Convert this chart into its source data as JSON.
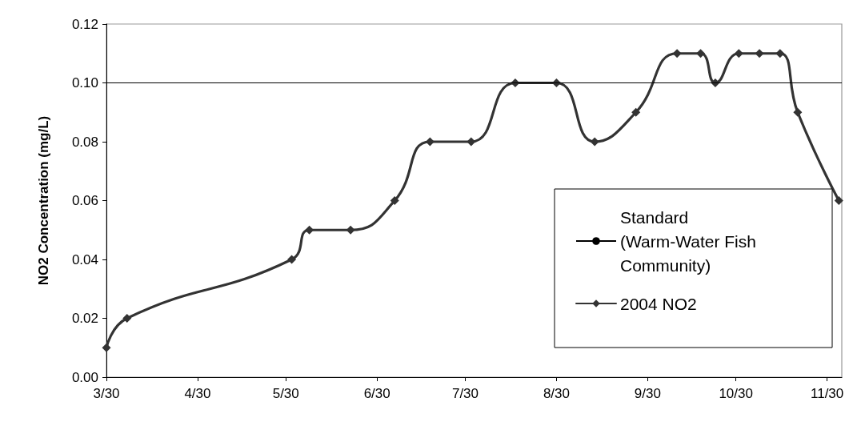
{
  "chart_data": {
    "type": "line",
    "ylabel": "NO2 Concentration (mg/L)",
    "x": [
      "--03-30",
      "--04-06",
      "--06-01",
      "--06-07",
      "--06-21",
      "--07-06",
      "--07-18",
      "--08-01",
      "--08-16",
      "--08-30",
      "--09-12",
      "--09-26",
      "--10-10",
      "--10-18",
      "--10-23",
      "--10-31",
      "--11-07",
      "--11-14",
      "--11-20",
      "--12-04"
    ],
    "series": [
      {
        "name": "2004 NO2",
        "color": "#333333",
        "values": [
          0.01,
          0.02,
          0.04,
          0.05,
          0.05,
          0.06,
          0.08,
          0.08,
          0.1,
          0.1,
          0.08,
          0.09,
          0.11,
          0.11,
          0.1,
          0.11,
          0.11,
          0.11,
          0.09,
          0.06
        ]
      }
    ],
    "xlim": [
      "--03-30",
      "--12-05"
    ],
    "xticks": [
      {
        "value": "--03-30",
        "label": "3/30"
      },
      {
        "value": "--04-30",
        "label": "4/30"
      },
      {
        "value": "--05-30",
        "label": "5/30"
      },
      {
        "value": "--06-30",
        "label": "6/30"
      },
      {
        "value": "--07-30",
        "label": "7/30"
      },
      {
        "value": "--08-30",
        "label": "8/30"
      },
      {
        "value": "--09-30",
        "label": "9/30"
      },
      {
        "value": "--10-30",
        "label": "10/30"
      },
      {
        "value": "--11-30",
        "label": "11/30"
      }
    ],
    "ylim": [
      0,
      0.12
    ],
    "yticks": [
      {
        "value": 0,
        "label": "0.00"
      },
      {
        "value": 0.02,
        "label": "0.02"
      },
      {
        "value": 0.04,
        "label": "0.04"
      },
      {
        "value": 0.06,
        "label": "0.06"
      },
      {
        "value": 0.08,
        "label": "0.08"
      },
      {
        "value": 0.1,
        "label": "0.10"
      },
      {
        "value": 0.12,
        "label": "0.12"
      }
    ],
    "ref_lines": [
      {
        "axis": "y",
        "value": 0.1,
        "label": "Standard (Warm-Water Fish Community)",
        "color": "#000000",
        "line_style": "solid"
      }
    ],
    "grid": false,
    "legend": "bottom right",
    "marker": "diamond",
    "line_style": "solid"
  }
}
